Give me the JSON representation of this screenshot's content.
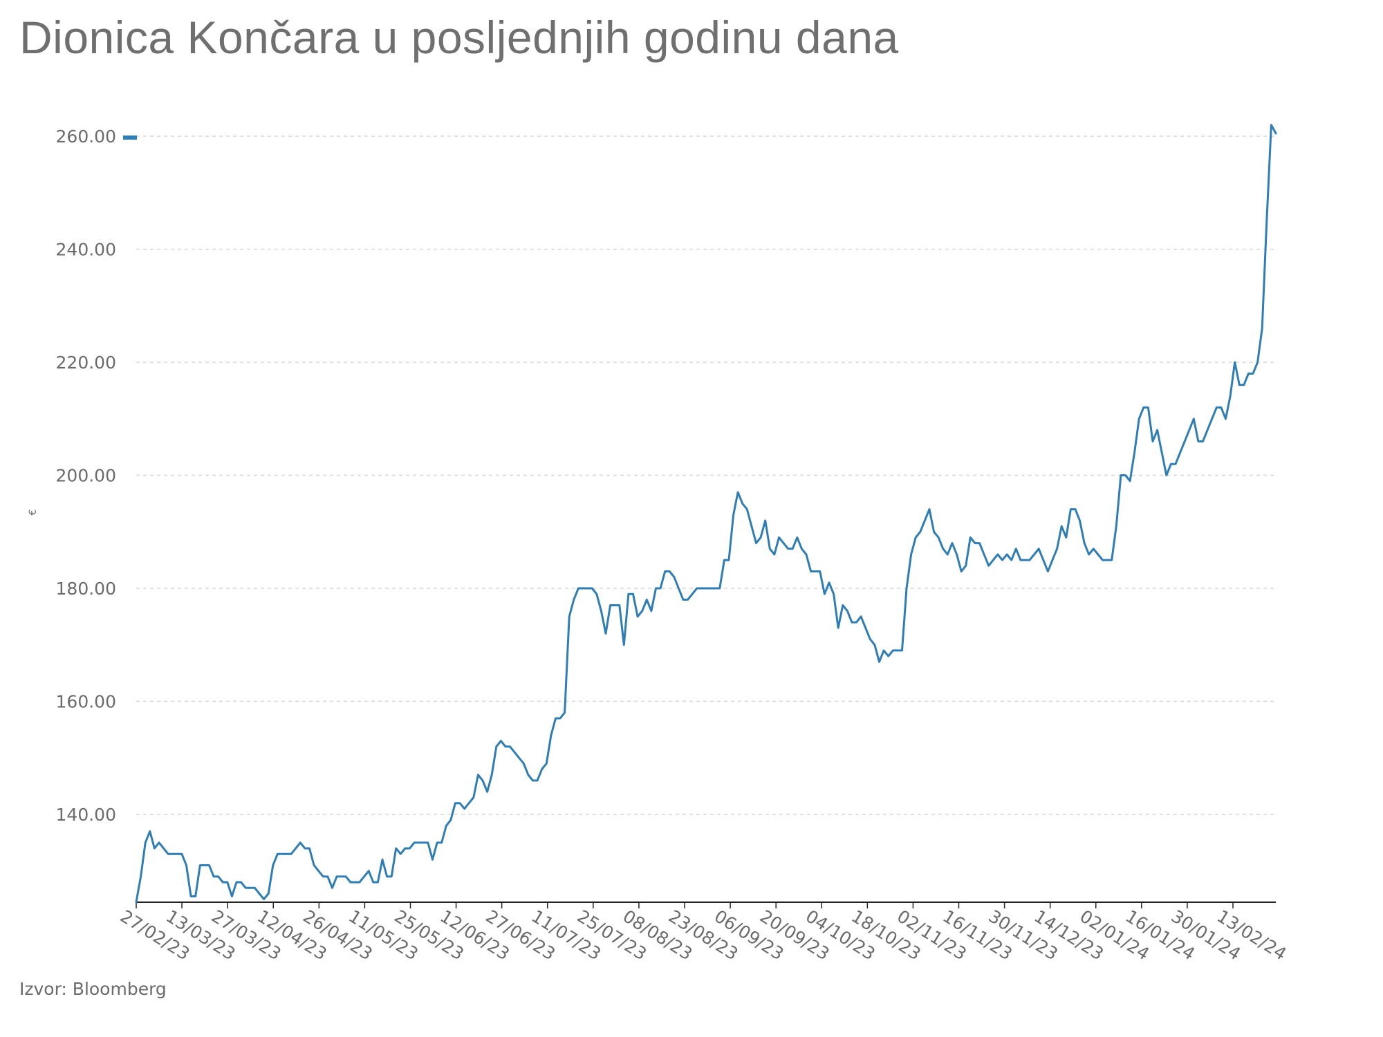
{
  "title": "Dionica Končara u posljednjih godinu dana",
  "source": "Izvor: Bloomberg",
  "colors": {
    "line": "#2e7db5",
    "grid": "#d6d6d6",
    "text": "#6b6b6b"
  },
  "chart_data": {
    "type": "line",
    "title": "Dionica Končara u posljednjih godinu dana",
    "xlabel": "",
    "ylabel": "€",
    "ylim": [
      124.5,
      262
    ],
    "yticks": [
      140,
      160,
      180,
      200,
      220,
      240,
      260
    ],
    "ytick_labels": [
      "140.00",
      "160.00",
      "180.00",
      "200.00",
      "220.00",
      "240.00",
      "260.00"
    ],
    "xtick_labels": [
      "27/02/23",
      "13/03/23",
      "27/03/23",
      "12/04/23",
      "26/04/23",
      "11/05/23",
      "25/05/23",
      "12/06/23",
      "27/06/23",
      "11/07/23",
      "25/07/23",
      "08/08/23",
      "23/08/23",
      "06/09/23",
      "20/09/23",
      "04/10/23",
      "18/10/23",
      "02/11/23",
      "16/11/23",
      "30/11/23",
      "14/12/23",
      "02/01/24",
      "16/01/24",
      "30/01/24",
      "13/02/24"
    ],
    "grid": "horizontal dashed",
    "legend": "none",
    "series": [
      {
        "values": [
          124.5,
          129,
          135,
          137,
          134,
          135,
          134,
          133,
          133,
          133,
          133,
          131,
          125.5,
          125.5,
          131,
          131,
          131,
          129,
          129,
          128,
          128,
          125.5,
          128,
          128,
          127,
          127,
          127,
          126,
          125,
          126,
          131,
          133,
          133,
          133,
          133,
          134,
          135,
          134,
          134,
          131,
          130,
          129,
          129,
          127,
          129,
          129,
          129,
          128,
          128,
          128,
          129,
          130,
          128,
          128,
          132,
          129,
          129,
          134,
          133,
          134,
          134,
          135,
          135,
          135,
          135,
          132,
          135,
          135,
          138,
          139,
          142,
          142,
          141,
          142,
          143,
          147,
          146,
          144,
          147,
          152,
          153,
          152,
          152,
          151,
          150,
          149,
          147,
          146,
          146,
          148,
          149,
          154,
          157,
          157,
          158,
          175,
          178,
          180,
          180,
          180,
          180,
          179,
          176,
          172,
          177,
          177,
          177,
          170,
          179,
          179,
          175,
          176,
          178,
          176,
          180,
          180,
          183,
          183,
          182,
          180,
          178,
          178,
          179,
          180,
          180,
          180,
          180,
          180,
          180,
          185,
          185,
          193,
          197,
          195,
          194,
          191,
          188,
          189,
          192,
          187,
          186,
          189,
          188,
          187,
          187,
          189,
          187,
          186,
          183,
          183,
          183,
          179,
          181,
          179,
          173,
          177,
          176,
          174,
          174,
          175,
          173,
          171,
          170,
          167,
          169,
          168,
          169,
          169,
          169,
          180,
          186,
          189,
          190,
          192,
          194,
          190,
          189,
          187,
          186,
          188,
          186,
          183,
          184,
          189,
          188,
          188,
          186,
          184,
          185,
          186,
          185,
          186,
          185,
          187,
          185,
          185,
          185,
          186,
          187,
          185,
          183,
          185,
          187,
          191,
          189,
          194,
          194,
          192,
          188,
          186,
          187,
          186,
          185,
          185,
          185,
          191,
          200,
          200,
          199,
          204,
          210,
          212,
          212,
          206,
          208,
          204,
          200,
          202,
          202,
          204,
          206,
          208,
          210,
          206,
          206,
          208,
          210,
          212,
          212,
          210,
          214,
          220,
          216,
          216,
          218,
          218,
          220,
          226,
          245,
          262,
          260.5
        ]
      }
    ]
  }
}
